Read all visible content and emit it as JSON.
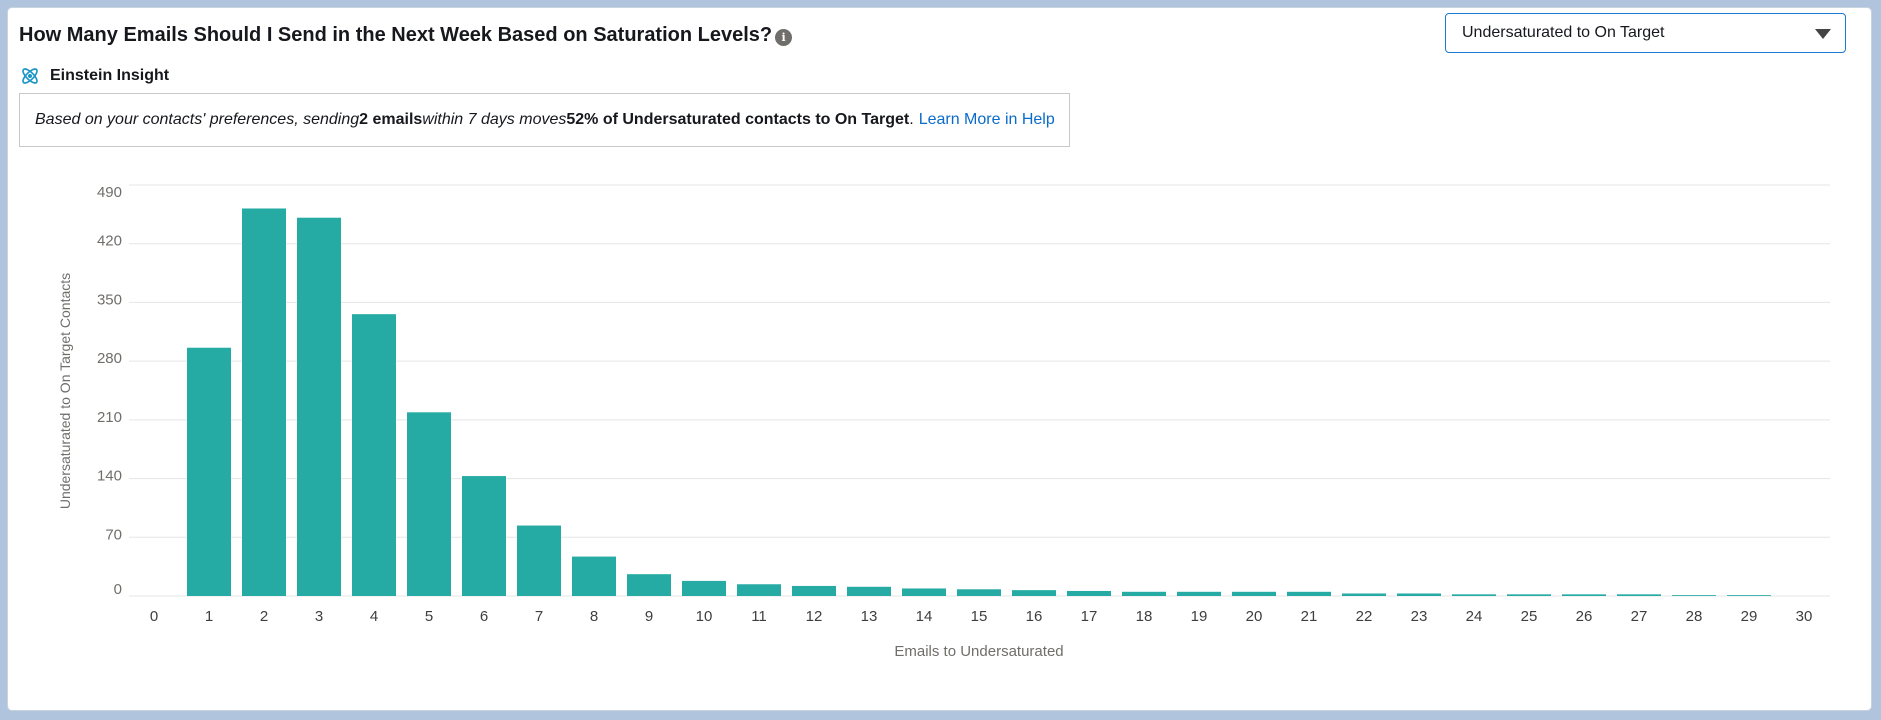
{
  "header": {
    "title": "How Many Emails Should I Send in the Next Week Based on Saturation Levels?",
    "info_icon": "info-icon",
    "einstein_label": "Einstein Insight",
    "einstein_icon": "atom-icon"
  },
  "insight": {
    "part1": "Based on your contacts' preferences, sending ",
    "emails_count": "2 emails",
    "part2": " within 7 days moves ",
    "percent_text": "52% of Undersaturated contacts to On Target",
    "part3": ".",
    "link_label": "Learn More in Help"
  },
  "dropdown": {
    "selected": "Undersaturated to On Target"
  },
  "colors": {
    "bar": "#26aba4",
    "link": "#0b6bcb",
    "grid": "#e5e5e5"
  },
  "chart_data": {
    "type": "bar",
    "title": "",
    "xlabel": "Emails to Undersaturated",
    "ylabel": "Undersaturated to On Target Contacts",
    "ylim": [
      0,
      490
    ],
    "yticks": [
      0,
      70,
      140,
      210,
      280,
      350,
      420,
      490
    ],
    "categories": [
      "0",
      "1",
      "2",
      "3",
      "4",
      "5",
      "6",
      "7",
      "8",
      "9",
      "10",
      "11",
      "12",
      "13",
      "14",
      "15",
      "16",
      "17",
      "18",
      "19",
      "20",
      "21",
      "22",
      "23",
      "24",
      "25",
      "26",
      "27",
      "28",
      "29",
      "30"
    ],
    "values": [
      0,
      296,
      462,
      451,
      336,
      219,
      143,
      84,
      47,
      26,
      18,
      14,
      12,
      11,
      9,
      8,
      7,
      6,
      5,
      5,
      5,
      5,
      3,
      3,
      2,
      2,
      2,
      2,
      1,
      1,
      0
    ],
    "grid": true
  }
}
